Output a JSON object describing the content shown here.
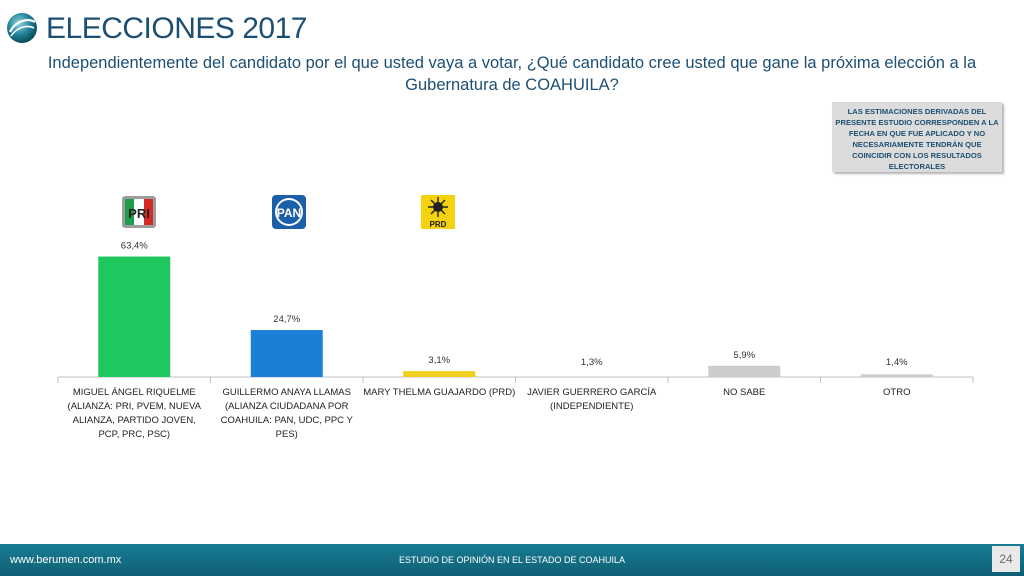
{
  "header": {
    "title": "ELECCIONES 2017",
    "subtitle": "Independientemente del candidato por el que usted vaya a votar, ¿Qué candidato cree usted que gane la próxima elección a la Gubernatura de COAHUILA?"
  },
  "disclaimer": "LAS ESTIMACIONES DERIVADAS DEL PRESENTE ESTUDIO CORRESPONDEN A LA FECHA EN QUE FUE APLICADO Y NO NECESARIAMENTE TENDRÁN QUE COINCIDIR CON LOS RESULTADOS ELECTORALES",
  "logos": {
    "pri": "PRI",
    "pan": "PAN",
    "prd": "PRD"
  },
  "chart_data": {
    "type": "bar",
    "categories": [
      "MIGUEL ÁNGEL RIQUELME (ALIANZA: PRI, PVEM, NUEVA ALIANZA, PARTIDO JOVEN, PCP, PRC, PSC)",
      "GUILLERMO ANAYA LLAMAS (ALIANZA CIUDADANA POR COAHUILA: PAN, UDC, PPC Y PES)",
      "MARY THELMA GUAJARDO (PRD)",
      "JAVIER GUERRERO GARCÍA (INDEPENDIENTE)",
      "NO SABE",
      "OTRO"
    ],
    "values": [
      63.4,
      24.7,
      3.1,
      1.3,
      5.9,
      1.4
    ],
    "data_labels": [
      "63,4%",
      "24,7%",
      "3,1%",
      "1,3%",
      "5,9%",
      "1,4%"
    ],
    "colors": [
      "#1fc75f",
      "#1a80d6",
      "#f2cf1c",
      "#cccccc",
      "#cccccc",
      "#cccccc"
    ],
    "ylim": [
      0,
      70
    ],
    "grid": false,
    "legend": "none"
  },
  "footer": {
    "url": "www.berumen.com.mx",
    "center": "ESTUDIO DE OPINIÓN EN EL ESTADO DE COAHUILA",
    "page": "24"
  }
}
